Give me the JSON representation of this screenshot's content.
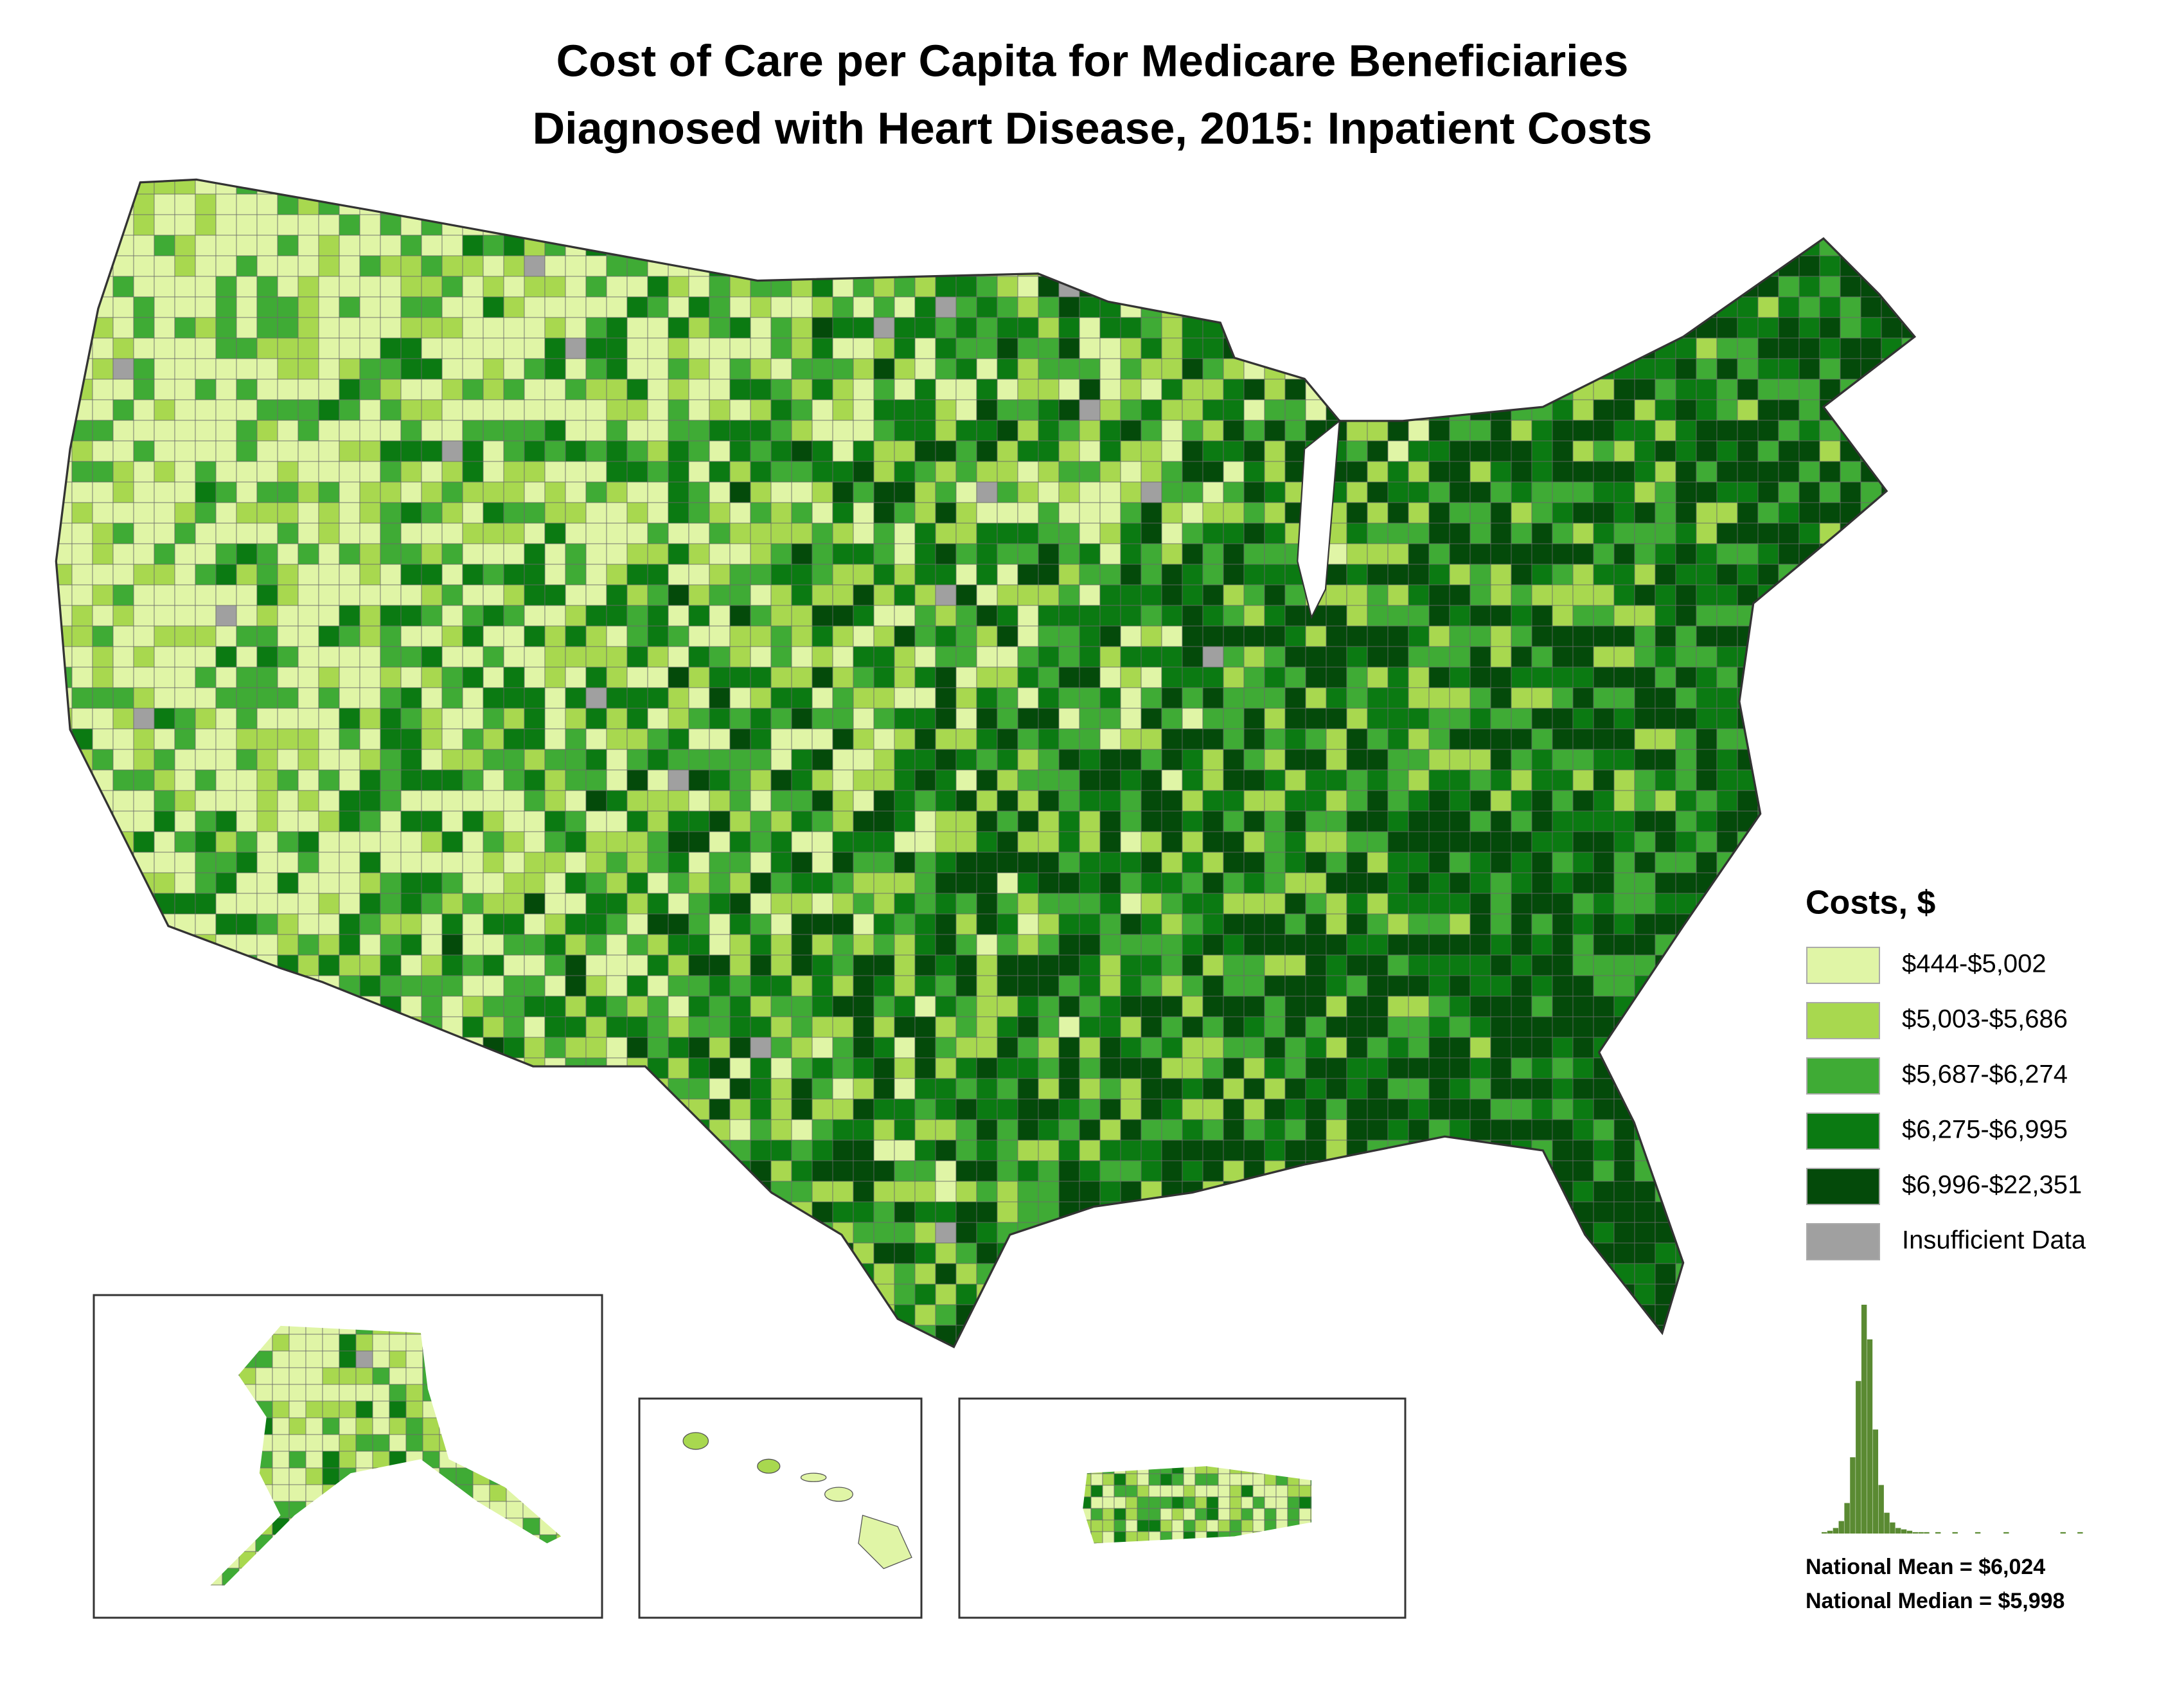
{
  "title": [
    "Cost of Care per Capita for Medicare Beneficiaries",
    "Diagnosed with Heart Disease, 2015: Inpatient Costs"
  ],
  "legend": {
    "title": "Costs, $",
    "items": [
      {
        "label": "$444-$5,002",
        "color": "#e0f5a6"
      },
      {
        "label": "$5,003-$5,686",
        "color": "#a8d84f"
      },
      {
        "label": "$5,687-$6,274",
        "color": "#3fab35"
      },
      {
        "label": "$6,275-$6,995",
        "color": "#0b7a12"
      },
      {
        "label": "$6,996-$22,351",
        "color": "#044a0a"
      },
      {
        "label": "Insufficient Data",
        "color": "#a0a0a0"
      }
    ]
  },
  "histogram": {
    "color": "#5a8a32",
    "values": [
      1,
      2,
      4,
      9,
      22,
      55,
      110,
      165,
      140,
      75,
      35,
      15,
      8,
      4,
      3,
      2,
      1,
      1,
      1,
      0,
      1,
      0,
      0,
      1,
      0,
      0,
      0,
      1,
      0,
      0,
      0,
      0,
      1,
      0,
      0,
      0,
      0,
      0,
      0,
      0,
      0,
      0,
      1,
      0,
      0,
      1
    ]
  },
  "stats": [
    "National Mean = $6,024",
    "National Median = $5,998"
  ]
}
